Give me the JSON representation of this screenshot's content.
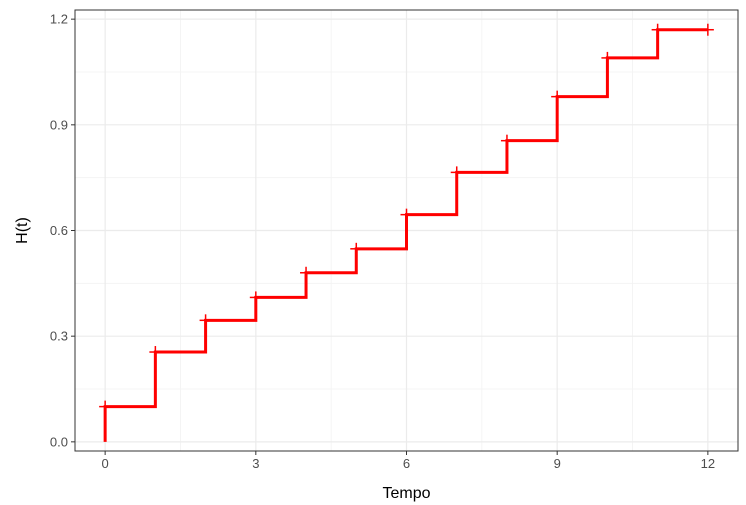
{
  "chart_data": {
    "type": "line",
    "step": true,
    "title": "",
    "xlabel": "Tempo",
    "ylabel": "H(t)",
    "xlim": [
      -0.6,
      12.6
    ],
    "ylim": [
      -0.026,
      1.226
    ],
    "xticks": [
      0,
      3,
      6,
      9,
      12
    ],
    "xtick_labels": [
      "0",
      "3",
      "6",
      "9",
      "12"
    ],
    "yticks": [
      0.0,
      0.3,
      0.6,
      0.9,
      1.2
    ],
    "ytick_labels": [
      "0.0",
      "0.3",
      "0.6",
      "0.9",
      "1.2"
    ],
    "grid": true,
    "legend": "none",
    "series": [
      {
        "color": "#ff0000",
        "x": [
          0,
          1,
          2,
          3,
          4,
          5,
          6,
          7,
          8,
          9,
          10,
          11,
          12
        ],
        "y": [
          0.1,
          0.255,
          0.345,
          0.41,
          0.48,
          0.548,
          0.645,
          0.765,
          0.855,
          0.98,
          1.09,
          1.17,
          1.17
        ],
        "start_y": 0.0,
        "censor_marks": [
          {
            "x": 0,
            "y": 0.1
          },
          {
            "x": 1,
            "y": 0.255
          },
          {
            "x": 2,
            "y": 0.345
          },
          {
            "x": 3,
            "y": 0.41
          },
          {
            "x": 4,
            "y": 0.48
          },
          {
            "x": 5,
            "y": 0.548
          },
          {
            "x": 6,
            "y": 0.645
          },
          {
            "x": 7,
            "y": 0.765
          },
          {
            "x": 8,
            "y": 0.855
          },
          {
            "x": 9,
            "y": 0.98
          },
          {
            "x": 10,
            "y": 1.09
          },
          {
            "x": 11,
            "y": 1.17
          },
          {
            "x": 12,
            "y": 1.17
          }
        ]
      }
    ]
  }
}
